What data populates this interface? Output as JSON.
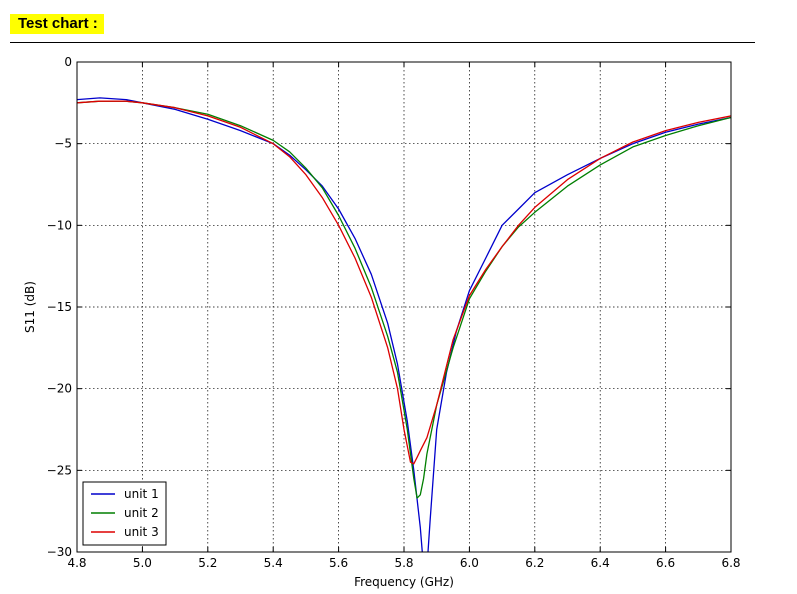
{
  "header": {
    "title": "Test chart :"
  },
  "chart_data": {
    "type": "line",
    "xlabel": "Frequency (GHz)",
    "ylabel": "S11 (dB)",
    "xlim": [
      4.8,
      6.8
    ],
    "ylim": [
      -30,
      0
    ],
    "xticks": [
      "4.8",
      "5.0",
      "5.2",
      "5.4",
      "5.6",
      "5.8",
      "6.0",
      "6.2",
      "6.4",
      "6.6",
      "6.8"
    ],
    "yticks": [
      "0",
      "−5",
      "−10",
      "−15",
      "−20",
      "−25",
      "−30"
    ],
    "grid": true,
    "legend_position": "bottom-left",
    "series": [
      {
        "name": "unit 1",
        "color": "#0000cc",
        "x": [
          4.8,
          4.87,
          4.95,
          5.0,
          5.1,
          5.2,
          5.3,
          5.4,
          5.45,
          5.5,
          5.55,
          5.6,
          5.65,
          5.7,
          5.75,
          5.78,
          5.81,
          5.83,
          5.85,
          5.86,
          5.87,
          5.88,
          5.9,
          5.93,
          5.96,
          6.0,
          6.05,
          6.1,
          6.15,
          6.2,
          6.3,
          6.4,
          6.5,
          6.6,
          6.7,
          6.8
        ],
        "y": [
          -2.3,
          -2.2,
          -2.3,
          -2.5,
          -2.9,
          -3.5,
          -4.2,
          -5.0,
          -5.7,
          -6.6,
          -7.6,
          -9.0,
          -10.8,
          -13.0,
          -16.0,
          -18.5,
          -22.0,
          -25.0,
          -28.5,
          -31.0,
          -31.0,
          -28.0,
          -22.5,
          -19.0,
          -16.5,
          -14.0,
          -12.0,
          -10.0,
          -9.0,
          -8.0,
          -6.9,
          -5.9,
          -5.0,
          -4.3,
          -3.8,
          -3.4
        ]
      },
      {
        "name": "unit 2",
        "color": "#007f00",
        "x": [
          4.8,
          4.87,
          4.95,
          5.0,
          5.1,
          5.2,
          5.3,
          5.4,
          5.45,
          5.5,
          5.55,
          5.6,
          5.65,
          5.7,
          5.75,
          5.78,
          5.81,
          5.83,
          5.84,
          5.85,
          5.86,
          5.87,
          5.9,
          5.95,
          6.0,
          6.05,
          6.1,
          6.15,
          6.2,
          6.3,
          6.4,
          6.5,
          6.6,
          6.7,
          6.8
        ],
        "y": [
          -2.5,
          -2.4,
          -2.4,
          -2.5,
          -2.8,
          -3.2,
          -3.9,
          -4.8,
          -5.5,
          -6.5,
          -7.7,
          -9.4,
          -11.4,
          -13.8,
          -16.8,
          -19.0,
          -22.5,
          -25.5,
          -26.7,
          -26.5,
          -25.5,
          -24.0,
          -21.0,
          -17.5,
          -14.5,
          -12.8,
          -11.3,
          -10.1,
          -9.2,
          -7.6,
          -6.3,
          -5.2,
          -4.5,
          -3.9,
          -3.4
        ]
      },
      {
        "name": "unit 3",
        "color": "#dd0000",
        "x": [
          4.8,
          4.87,
          4.95,
          5.0,
          5.1,
          5.2,
          5.3,
          5.4,
          5.45,
          5.5,
          5.55,
          5.6,
          5.65,
          5.7,
          5.75,
          5.78,
          5.8,
          5.82,
          5.83,
          5.84,
          5.85,
          5.87,
          5.9,
          5.95,
          6.0,
          6.05,
          6.1,
          6.15,
          6.2,
          6.3,
          6.4,
          6.5,
          6.6,
          6.7,
          6.8
        ],
        "y": [
          -2.5,
          -2.4,
          -2.4,
          -2.5,
          -2.8,
          -3.3,
          -4.0,
          -5.0,
          -5.8,
          -6.9,
          -8.3,
          -10.0,
          -12.0,
          -14.4,
          -17.5,
          -20.0,
          -22.5,
          -24.5,
          -24.6,
          -24.2,
          -23.8,
          -23.0,
          -21.0,
          -17.0,
          -14.3,
          -12.7,
          -11.3,
          -10.0,
          -8.9,
          -7.2,
          -5.9,
          -4.9,
          -4.2,
          -3.7,
          -3.3
        ]
      }
    ]
  }
}
